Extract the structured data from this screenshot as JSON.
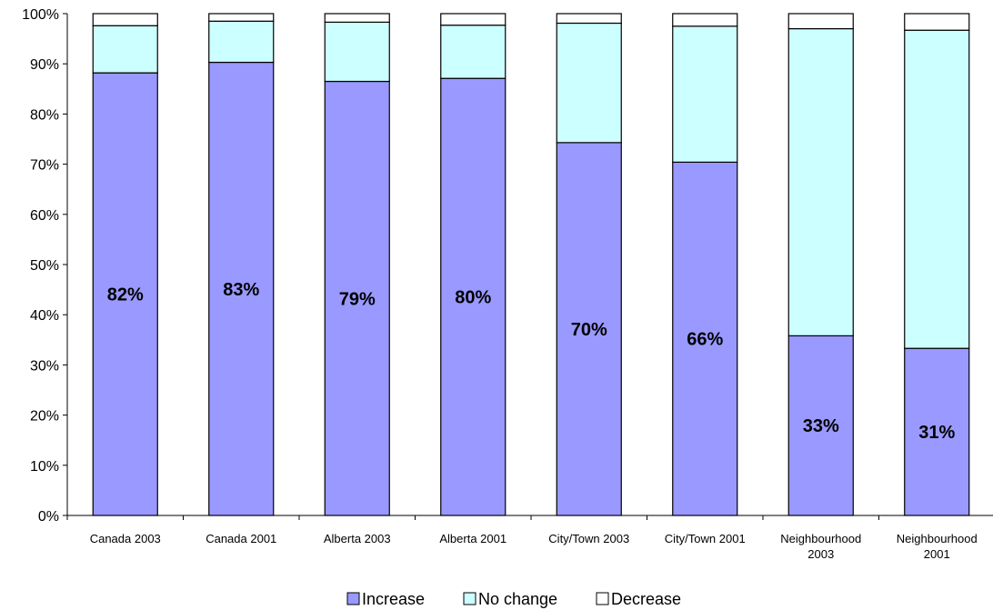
{
  "chart_data": {
    "type": "bar",
    "stacked": true,
    "percent_stacked": true,
    "categories": [
      "Canada 2003",
      "Canada 2001",
      "Alberta 2003",
      "Alberta 2001",
      "City/Town 2003",
      "City/Town 2001",
      "Neighbourhood 2003",
      "Neighbourhood 2001"
    ],
    "series": [
      {
        "name": "Increase",
        "color": "#9999ff",
        "values": [
          88.2,
          90.3,
          86.5,
          87.1,
          74.3,
          70.4,
          35.8,
          33.3
        ]
      },
      {
        "name": "No change",
        "color": "#ccffff",
        "values": [
          9.4,
          8.2,
          11.8,
          10.6,
          23.8,
          27.1,
          61.2,
          63.4
        ]
      },
      {
        "name": "Decrease",
        "color": "#ffffff",
        "values": [
          2.4,
          1.5,
          1.7,
          2.3,
          1.9,
          2.5,
          3.0,
          3.3
        ]
      }
    ],
    "data_labels": [
      "82%",
      "83%",
      "79%",
      "80%",
      "70%",
      "66%",
      "33%",
      "31%"
    ],
    "y_ticks": [
      "0%",
      "10%",
      "20%",
      "30%",
      "40%",
      "50%",
      "60%",
      "70%",
      "80%",
      "90%",
      "100%"
    ],
    "ylim": [
      0,
      100
    ],
    "grid": false,
    "legend_position": "bottom",
    "title": "",
    "xlabel": "",
    "ylabel": ""
  }
}
